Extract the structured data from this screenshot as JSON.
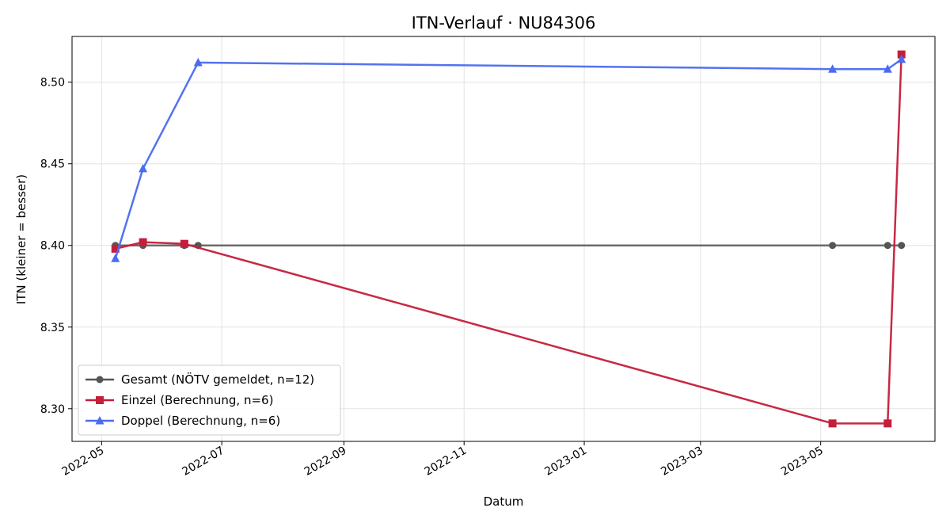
{
  "chart_data": {
    "type": "line",
    "title": "ITN-Verlauf · NU84306",
    "xlabel": "Datum",
    "ylabel": "ITN  (kleiner = besser)",
    "xlim": [
      "2022-04-16",
      "2023-06-28"
    ],
    "ylim": [
      8.28,
      8.528
    ],
    "x_ticks": [
      "2022-05-01",
      "2022-07-01",
      "2022-09-01",
      "2022-11-01",
      "2023-01-01",
      "2023-03-01",
      "2023-05-01"
    ],
    "x_tick_labels": [
      "2022-05",
      "2022-07",
      "2022-09",
      "2022-11",
      "2023-01",
      "2023-03",
      "2023-05"
    ],
    "y_ticks": [
      8.3,
      8.35,
      8.4,
      8.45,
      8.5
    ],
    "y_tick_labels": [
      "8.30",
      "8.35",
      "8.40",
      "8.45",
      "8.50"
    ],
    "grid": true,
    "legend_position": "lower-left",
    "series": [
      {
        "name": "Gesamt (NÖTV gemeldet, n=12)",
        "color": "#555555",
        "marker": "circle",
        "points": [
          {
            "x": "2022-05-08",
            "y": 8.4
          },
          {
            "x": "2022-05-22",
            "y": 8.4
          },
          {
            "x": "2022-06-12",
            "y": 8.4
          },
          {
            "x": "2022-06-19",
            "y": 8.4
          },
          {
            "x": "2023-05-07",
            "y": 8.4
          },
          {
            "x": "2023-06-04",
            "y": 8.4
          },
          {
            "x": "2023-06-11",
            "y": 8.4
          }
        ]
      },
      {
        "name": "Einzel (Berechnung, n=6)",
        "color": "#c41e3a",
        "marker": "square",
        "points": [
          {
            "x": "2022-05-08",
            "y": 8.398
          },
          {
            "x": "2022-05-22",
            "y": 8.402
          },
          {
            "x": "2022-06-12",
            "y": 8.401
          },
          {
            "x": "2023-05-07",
            "y": 8.291
          },
          {
            "x": "2023-06-04",
            "y": 8.291
          },
          {
            "x": "2023-06-11",
            "y": 8.517
          }
        ]
      },
      {
        "name": "Doppel (Berechnung, n=6)",
        "color": "#4a6cf0",
        "marker": "triangle",
        "points": [
          {
            "x": "2022-05-08",
            "y": 8.392
          },
          {
            "x": "2022-05-22",
            "y": 8.447
          },
          {
            "x": "2022-06-19",
            "y": 8.512
          },
          {
            "x": "2023-05-07",
            "y": 8.508
          },
          {
            "x": "2023-06-04",
            "y": 8.508
          },
          {
            "x": "2023-06-11",
            "y": 8.514
          }
        ]
      }
    ]
  }
}
